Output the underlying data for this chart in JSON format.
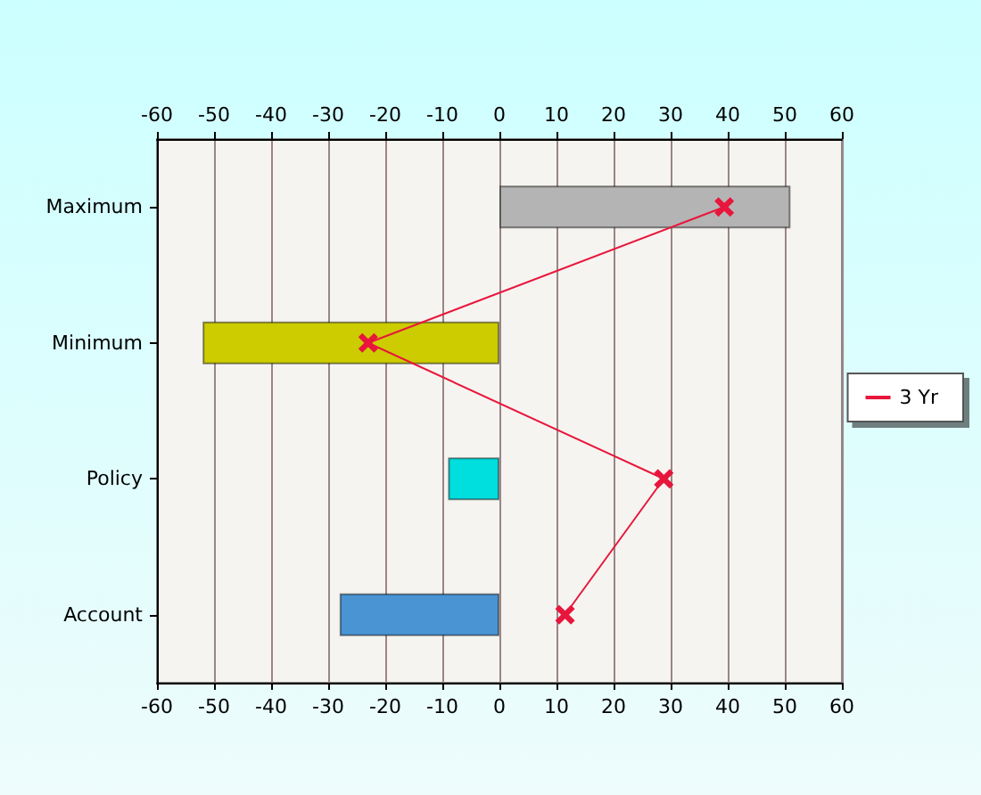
{
  "chart_data": {
    "type": "bar",
    "orientation": "horizontal",
    "categories": [
      "Maximum",
      "Minimum",
      "Policy",
      "Account"
    ],
    "series": [
      {
        "values": [
          51,
          -52,
          -9,
          -28
        ],
        "colors": [
          "#b4b4b4",
          "#cccc00",
          "#00dede",
          "#4a94d4"
        ]
      },
      {
        "type": "line",
        "name": "3 Yr",
        "color": "#e8163c",
        "values": [
          39.4,
          -23,
          28.8,
          11.5
        ],
        "marker": "cross"
      }
    ],
    "xlim": [
      -60,
      60
    ],
    "xticks": [
      -60,
      -50,
      -40,
      -30,
      -20,
      -10,
      0,
      10,
      20,
      30,
      40,
      50,
      60
    ],
    "x2lim": [
      -60,
      60
    ],
    "x2ticks": [
      -60,
      -50,
      -40,
      -30,
      -20,
      -10,
      0,
      10,
      20,
      30,
      40,
      50,
      60
    ],
    "grid": "x",
    "legend": "right"
  }
}
